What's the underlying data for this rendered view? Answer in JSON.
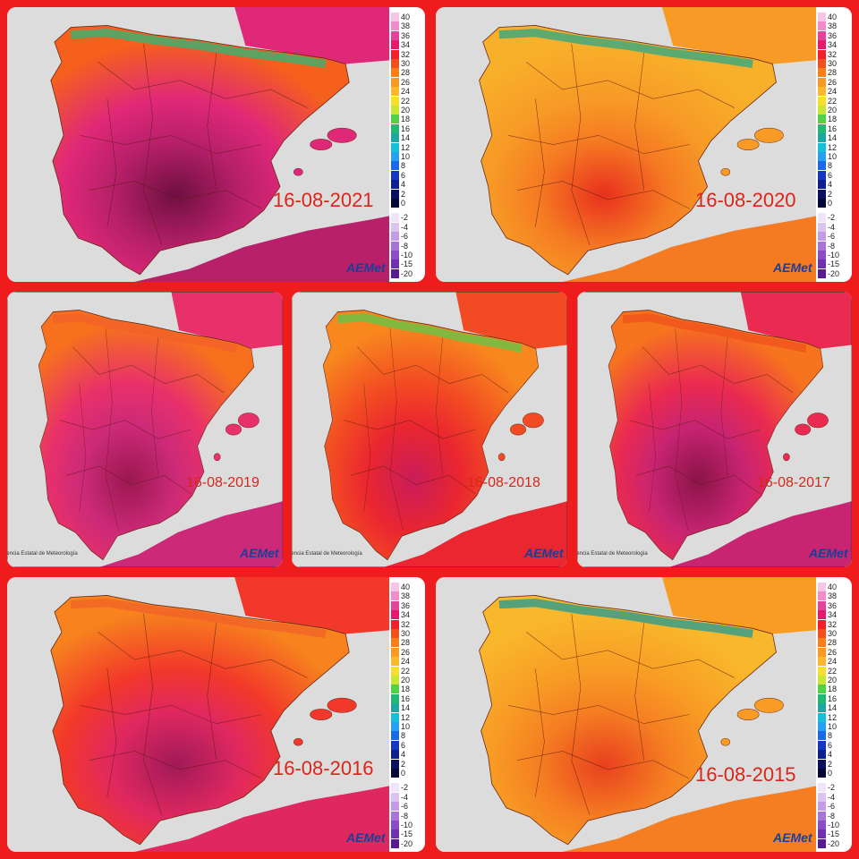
{
  "panels": [
    {
      "date": "16-08-2021"
    },
    {
      "date": "16-08-2020"
    },
    {
      "date": "16-08-2019"
    },
    {
      "date": "16-08-2018"
    },
    {
      "date": "16-08-2017"
    },
    {
      "date": "16-08-2016"
    },
    {
      "date": "16-08-2015"
    }
  ],
  "legend": [
    {
      "value": 40,
      "color": "#f7c6e6"
    },
    {
      "value": 38,
      "color": "#f08ccc"
    },
    {
      "value": 36,
      "color": "#e0459c"
    },
    {
      "value": 34,
      "color": "#e8186e"
    },
    {
      "value": 32,
      "color": "#f2202a"
    },
    {
      "value": 30,
      "color": "#f5501c"
    },
    {
      "value": 28,
      "color": "#f87d1c"
    },
    {
      "value": 26,
      "color": "#fa9a22"
    },
    {
      "value": 24,
      "color": "#fbb82a"
    },
    {
      "value": 22,
      "color": "#f7df2c"
    },
    {
      "value": 20,
      "color": "#c8e632"
    },
    {
      "value": 18,
      "color": "#52d046"
    },
    {
      "value": 16,
      "color": "#20b872"
    },
    {
      "value": 14,
      "color": "#1ca8a0"
    },
    {
      "value": 12,
      "color": "#16c0d8"
    },
    {
      "value": 10,
      "color": "#26a0f0"
    },
    {
      "value": 8,
      "color": "#1a6ae8"
    },
    {
      "value": 6,
      "color": "#1438c0"
    },
    {
      "value": 4,
      "color": "#0e2090"
    },
    {
      "value": 2,
      "color": "#0a1260"
    },
    {
      "value": 0,
      "color": "#060838"
    },
    {
      "value": -2,
      "color": "#f0e4f8"
    },
    {
      "value": -4,
      "color": "#dcc4f0"
    },
    {
      "value": -6,
      "color": "#c49ce6"
    },
    {
      "value": -8,
      "color": "#a874d8"
    },
    {
      "value": -10,
      "color": "#8c4cc8"
    },
    {
      "value": -15,
      "color": "#7030b0"
    },
    {
      "value": -20,
      "color": "#561c90"
    }
  ],
  "logo": "AEMet",
  "agency": "Agencia Estatal de Meteorología"
}
